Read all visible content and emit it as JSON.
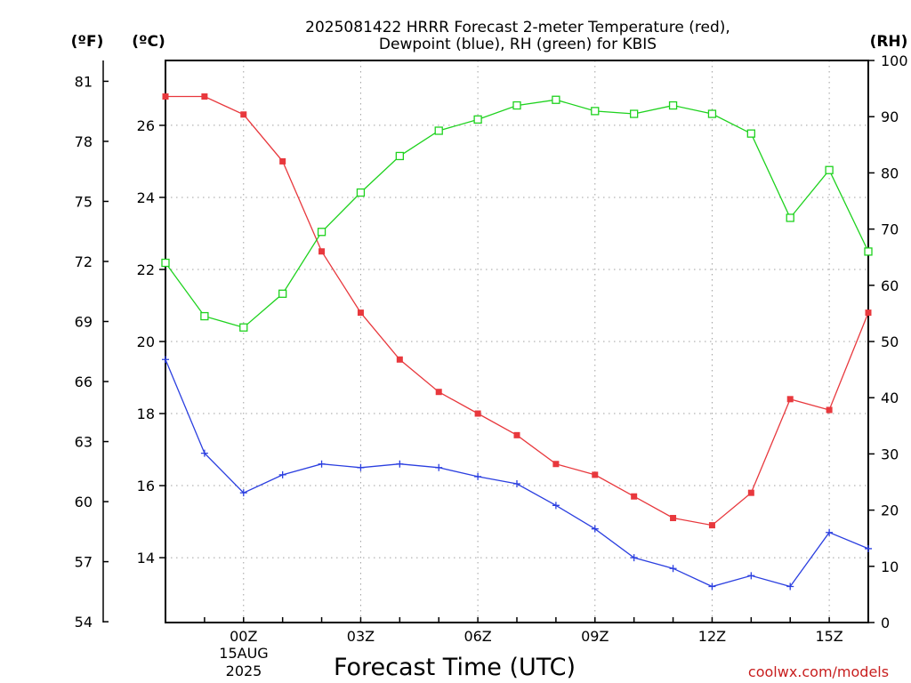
{
  "chart_data": {
    "type": "line",
    "title_line1": "2025081422 HRRR Forecast 2-meter Temperature (red),",
    "title_line2": "Dewpoint (blue), RH (green) for KBIS",
    "xlabel": "Forecast Time (UTC)",
    "credit": "coolwx.com/models",
    "units": {
      "f": "(ºF)",
      "c": "(ºC)",
      "rh": "(RH)"
    },
    "date_label": [
      "15AUG",
      "2025"
    ],
    "x": [
      "22Z",
      "23Z",
      "00Z",
      "01Z",
      "02Z",
      "03Z",
      "04Z",
      "05Z",
      "06Z",
      "07Z",
      "08Z",
      "09Z",
      "10Z",
      "11Z",
      "12Z",
      "13Z",
      "14Z",
      "15Z",
      "16Z"
    ],
    "x_tick_labels": [
      {
        "i": 2,
        "label": "00Z"
      },
      {
        "i": 5,
        "label": "03Z"
      },
      {
        "i": 8,
        "label": "06Z"
      },
      {
        "i": 11,
        "label": "09Z"
      },
      {
        "i": 14,
        "label": "12Z"
      },
      {
        "i": 17,
        "label": "15Z"
      }
    ],
    "y_left_celsius": {
      "ticks": [
        "14",
        "16",
        "18",
        "20",
        "22",
        "24",
        "26"
      ],
      "range": [
        12.2,
        27.8
      ]
    },
    "y_left_fahrenheit": {
      "ticks": [
        "54",
        "57",
        "60",
        "63",
        "66",
        "69",
        "72",
        "75",
        "78",
        "81"
      ]
    },
    "y_right_rh": {
      "ticks": [
        "0",
        "10",
        "20",
        "30",
        "40",
        "50",
        "60",
        "70",
        "80",
        "90",
        "100"
      ],
      "range": [
        0,
        100
      ]
    },
    "grid": true,
    "series": [
      {
        "key": "temp",
        "color": "#e8383d",
        "marker": "filled-square",
        "axis": "celsius",
        "values": [
          26.8,
          26.8,
          26.3,
          25.0,
          22.5,
          20.8,
          19.5,
          18.6,
          18.0,
          17.4,
          16.6,
          16.3,
          15.7,
          15.1,
          14.9,
          15.8,
          18.4,
          18.1,
          20.8
        ]
      },
      {
        "key": "dewpoint",
        "color": "#2b3fe0",
        "marker": "plus",
        "axis": "celsius",
        "values": [
          19.5,
          16.9,
          15.8,
          16.3,
          16.6,
          16.5,
          16.6,
          16.5,
          16.25,
          16.05,
          15.45,
          14.8,
          14.0,
          13.7,
          13.2,
          13.5,
          13.2,
          14.7,
          14.25
        ]
      },
      {
        "key": "rh",
        "color": "#1ed21e",
        "marker": "open-square",
        "axis": "rh",
        "values": [
          64,
          54.5,
          52.5,
          58.5,
          69.5,
          76.5,
          83,
          87.5,
          89.5,
          92,
          93,
          91,
          90.5,
          92,
          90.5,
          87,
          72,
          80.5,
          66
        ]
      }
    ]
  }
}
